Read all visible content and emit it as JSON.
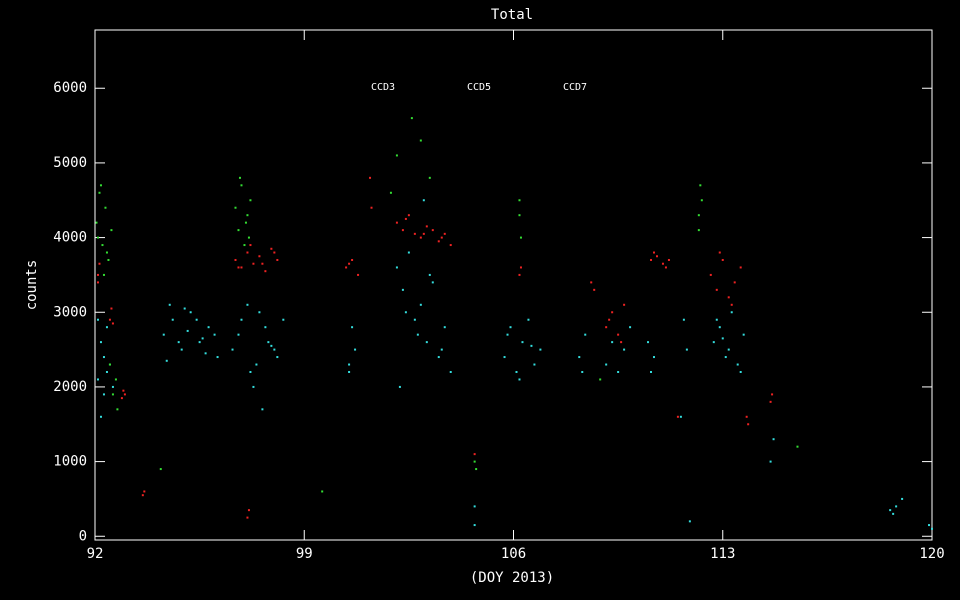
{
  "chart_data": {
    "type": "scatter",
    "title": "Total",
    "x_label": "(DOY 2013)",
    "y_label": "counts",
    "xlim": [
      92,
      120
    ],
    "xticks": [
      92,
      99,
      106,
      113,
      120
    ],
    "ylim": [
      -50,
      6780
    ],
    "yticks": [
      0,
      1000,
      2000,
      3000,
      4000,
      5000,
      6000
    ],
    "series": [
      {
        "name": "CCD3",
        "color": "#33dddd",
        "x": [
          92.1,
          92.2,
          92.3,
          92.4,
          92.5,
          92.2,
          92.3,
          92.6,
          92.1,
          92.4,
          94.3,
          94.6,
          94.9,
          95.2,
          95.5,
          95.8,
          96.1,
          94.5,
          94.8,
          95.1,
          95.4,
          95.7,
          96.0,
          94.4,
          95.0,
          95.6,
          96.6,
          96.9,
          97.2,
          97.5,
          97.8,
          98.1,
          96.8,
          97.1,
          97.4,
          97.7,
          98.0,
          98.3,
          97.3,
          97.6,
          97.9,
          100.5,
          100.6,
          100.7,
          100.5,
          102.1,
          102.3,
          102.5,
          102.7,
          102.9,
          103.1,
          103.3,
          103.5,
          103.7,
          103.9,
          102.4,
          102.8,
          103.2,
          103.6,
          102.2,
          103.0,
          104.7,
          104.7,
          105.7,
          105.9,
          106.1,
          106.3,
          106.5,
          106.7,
          106.9,
          105.8,
          106.2,
          106.6,
          108.2,
          108.4,
          108.3,
          109.1,
          109.3,
          109.5,
          109.7,
          109.9,
          110.5,
          110.7,
          110.6,
          111.6,
          111.8,
          111.7,
          111.9,
          112.7,
          112.9,
          113.1,
          113.3,
          113.5,
          113.7,
          112.8,
          113.2,
          113.6,
          113.0,
          114.6,
          114.7,
          118.6,
          118.8,
          119.0,
          118.7,
          119.9,
          120.0
        ],
        "values": [
          2100,
          2600,
          1900,
          2800,
          2300,
          1600,
          2400,
          2000,
          2900,
          2200,
          2700,
          2900,
          2500,
          3000,
          2600,
          2800,
          2400,
          3100,
          2600,
          2750,
          2900,
          2450,
          2700,
          2350,
          3050,
          2650,
          2500,
          2900,
          2200,
          3000,
          2600,
          2400,
          2700,
          3100,
          2300,
          2800,
          2500,
          2900,
          2000,
          1700,
          2550,
          2300,
          2800,
          2500,
          2200,
          3600,
          3300,
          3800,
          2900,
          3100,
          2600,
          3400,
          2400,
          2800,
          2200,
          3000,
          2700,
          3500,
          2500,
          2000,
          4500,
          400,
          150,
          2400,
          2800,
          2200,
          2600,
          2900,
          2300,
          2500,
          2700,
          2100,
          2550,
          2400,
          2700,
          2200,
          2300,
          2600,
          2200,
          2500,
          2800,
          2600,
          2400,
          2200,
          1600,
          2500,
          2900,
          200,
          2600,
          2800,
          2400,
          3000,
          2300,
          2700,
          2900,
          2500,
          2200,
          2650,
          1000,
          1300,
          350,
          400,
          500,
          300,
          150,
          100
        ]
      },
      {
        "name": "CCD5",
        "color": "#33dd33",
        "x": [
          92.05,
          92.15,
          92.25,
          92.35,
          92.45,
          92.1,
          92.3,
          92.2,
          92.4,
          92.55,
          92.5,
          92.6,
          92.7,
          92.75,
          96.7,
          96.8,
          96.9,
          97.0,
          97.1,
          97.2,
          96.85,
          97.05,
          97.15,
          102.1,
          102.6,
          103.2,
          101.9,
          102.9,
          104.7,
          104.75,
          106.2,
          106.25,
          106.2,
          112.2,
          112.25,
          112.3,
          112.2,
          99.6,
          108.9,
          94.2,
          115.5
        ],
        "values": [
          4200,
          4600,
          3900,
          4400,
          3700,
          4000,
          3500,
          4700,
          3800,
          4100,
          2300,
          1900,
          2100,
          1700,
          4400,
          4100,
          4700,
          3900,
          4300,
          4500,
          4800,
          4200,
          4000,
          5100,
          5600,
          4800,
          4600,
          5300,
          1000,
          900,
          4300,
          4000,
          4500,
          4300,
          4700,
          4500,
          4100,
          600,
          2100,
          900,
          1200
        ]
      },
      {
        "name": "CCD7",
        "color": "#ee2222",
        "x": [
          92.1,
          92.15,
          92.1,
          92.5,
          92.55,
          92.6,
          92.9,
          92.95,
          93.0,
          93.6,
          93.65,
          96.7,
          96.9,
          97.1,
          97.3,
          97.5,
          97.7,
          97.9,
          98.1,
          96.8,
          97.2,
          97.6,
          98.0,
          97.1,
          97.15,
          100.4,
          100.6,
          100.8,
          100.5,
          101.2,
          101.25,
          102.1,
          102.3,
          102.5,
          102.7,
          102.9,
          103.1,
          103.3,
          103.5,
          103.7,
          103.9,
          102.4,
          103.0,
          103.6,
          104.7,
          106.2,
          106.25,
          108.6,
          108.7,
          109.1,
          109.3,
          109.5,
          109.7,
          109.2,
          109.6,
          110.6,
          110.8,
          111.0,
          111.2,
          110.7,
          111.1,
          111.5,
          112.6,
          112.8,
          113.0,
          113.2,
          113.4,
          113.6,
          112.9,
          113.3,
          113.8,
          113.85,
          114.6,
          114.65
        ],
        "values": [
          3500,
          3650,
          3400,
          2900,
          3050,
          2850,
          1850,
          1950,
          1900,
          550,
          600,
          3700,
          3600,
          3800,
          3650,
          3750,
          3550,
          3850,
          3700,
          3600,
          3900,
          3650,
          3800,
          250,
          350,
          3600,
          3700,
          3500,
          3650,
          4800,
          4400,
          4200,
          4100,
          4300,
          4050,
          4000,
          4150,
          4100,
          3950,
          4050,
          3900,
          4250,
          4050,
          4000,
          1100,
          3500,
          3600,
          3400,
          3300,
          2800,
          3000,
          2700,
          3100,
          2900,
          2600,
          3700,
          3750,
          3650,
          3700,
          3800,
          3600,
          1600,
          3500,
          3300,
          3700,
          3200,
          3400,
          3600,
          3800,
          3100,
          1600,
          1500,
          1800,
          1900
        ]
      }
    ]
  }
}
